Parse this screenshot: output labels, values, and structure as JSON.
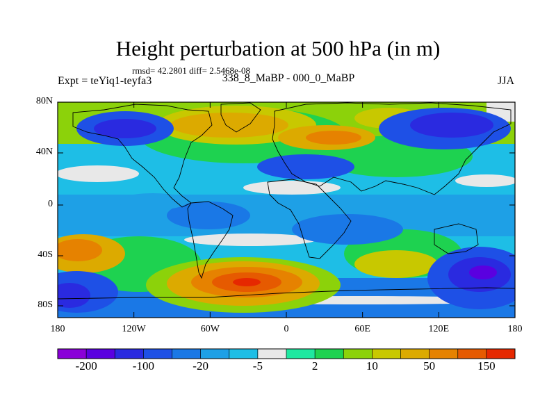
{
  "chart_data": {
    "type": "heatmap",
    "title": "Height perturbation at 500 hPa (in m)",
    "stats_text": "rmsd= 42.2801 diff= 2.5468e-08",
    "experiment_text": "Expt = teYiq1-teyfa3",
    "comparison_text": "338_8_MaBP - 000_0_MaBP",
    "season_text": "JJA",
    "lat_ticks": [
      "80N",
      "40N",
      "0",
      "40S",
      "80S"
    ],
    "lon_ticks": [
      "180",
      "120W",
      "60W",
      "0",
      "60E",
      "120E",
      "180"
    ],
    "colorbar": {
      "colors": [
        "#8a00d8",
        "#5a00e0",
        "#2a2ae0",
        "#1e50e6",
        "#1a78e6",
        "#1ea0e6",
        "#1ebee6",
        "#e8e8e8",
        "#1ee8a0",
        "#1ed250",
        "#8cd20a",
        "#c8c800",
        "#dcaa00",
        "#e68200",
        "#e65a00",
        "#e62800"
      ],
      "labels": [
        "-200",
        "-100",
        "-20",
        "-5",
        "2",
        "10",
        "50",
        "150"
      ]
    }
  }
}
